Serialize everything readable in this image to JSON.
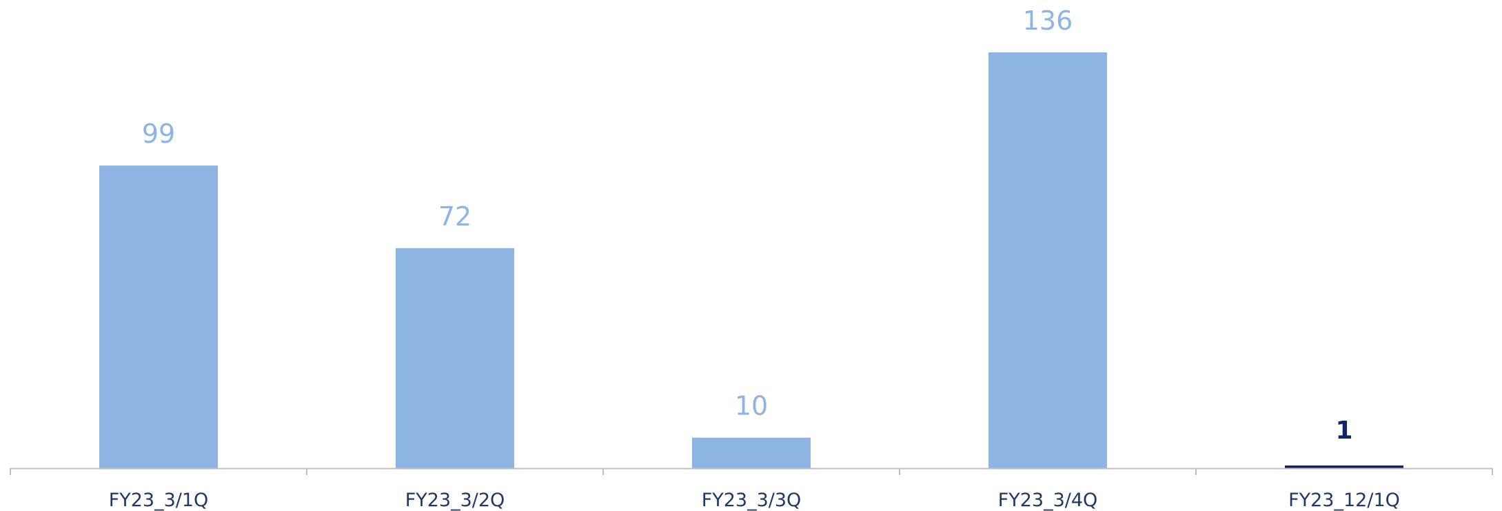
{
  "chart_data": {
    "type": "bar",
    "title": "",
    "xlabel": "",
    "ylabel": "",
    "categories": [
      "FY23_3/1Q",
      "FY23_3/2Q",
      "FY23_3/3Q",
      "FY23_3/4Q",
      "FY23_12/1Q"
    ],
    "values": [
      99,
      72,
      10,
      136,
      1
    ],
    "data_labels": [
      "99",
      "72",
      "10",
      "136",
      "1"
    ],
    "highlighted_index": 4,
    "ylim": [
      0,
      136
    ],
    "grid": false,
    "legend": "none"
  },
  "colors": {
    "bar": "#8EB4E3",
    "bar_label": "#8EB4E3",
    "highlight_bar": "#0F2666",
    "highlight_label": "#0F2666",
    "tick_label": "#1F3864",
    "axis": "#BFBFBF"
  }
}
